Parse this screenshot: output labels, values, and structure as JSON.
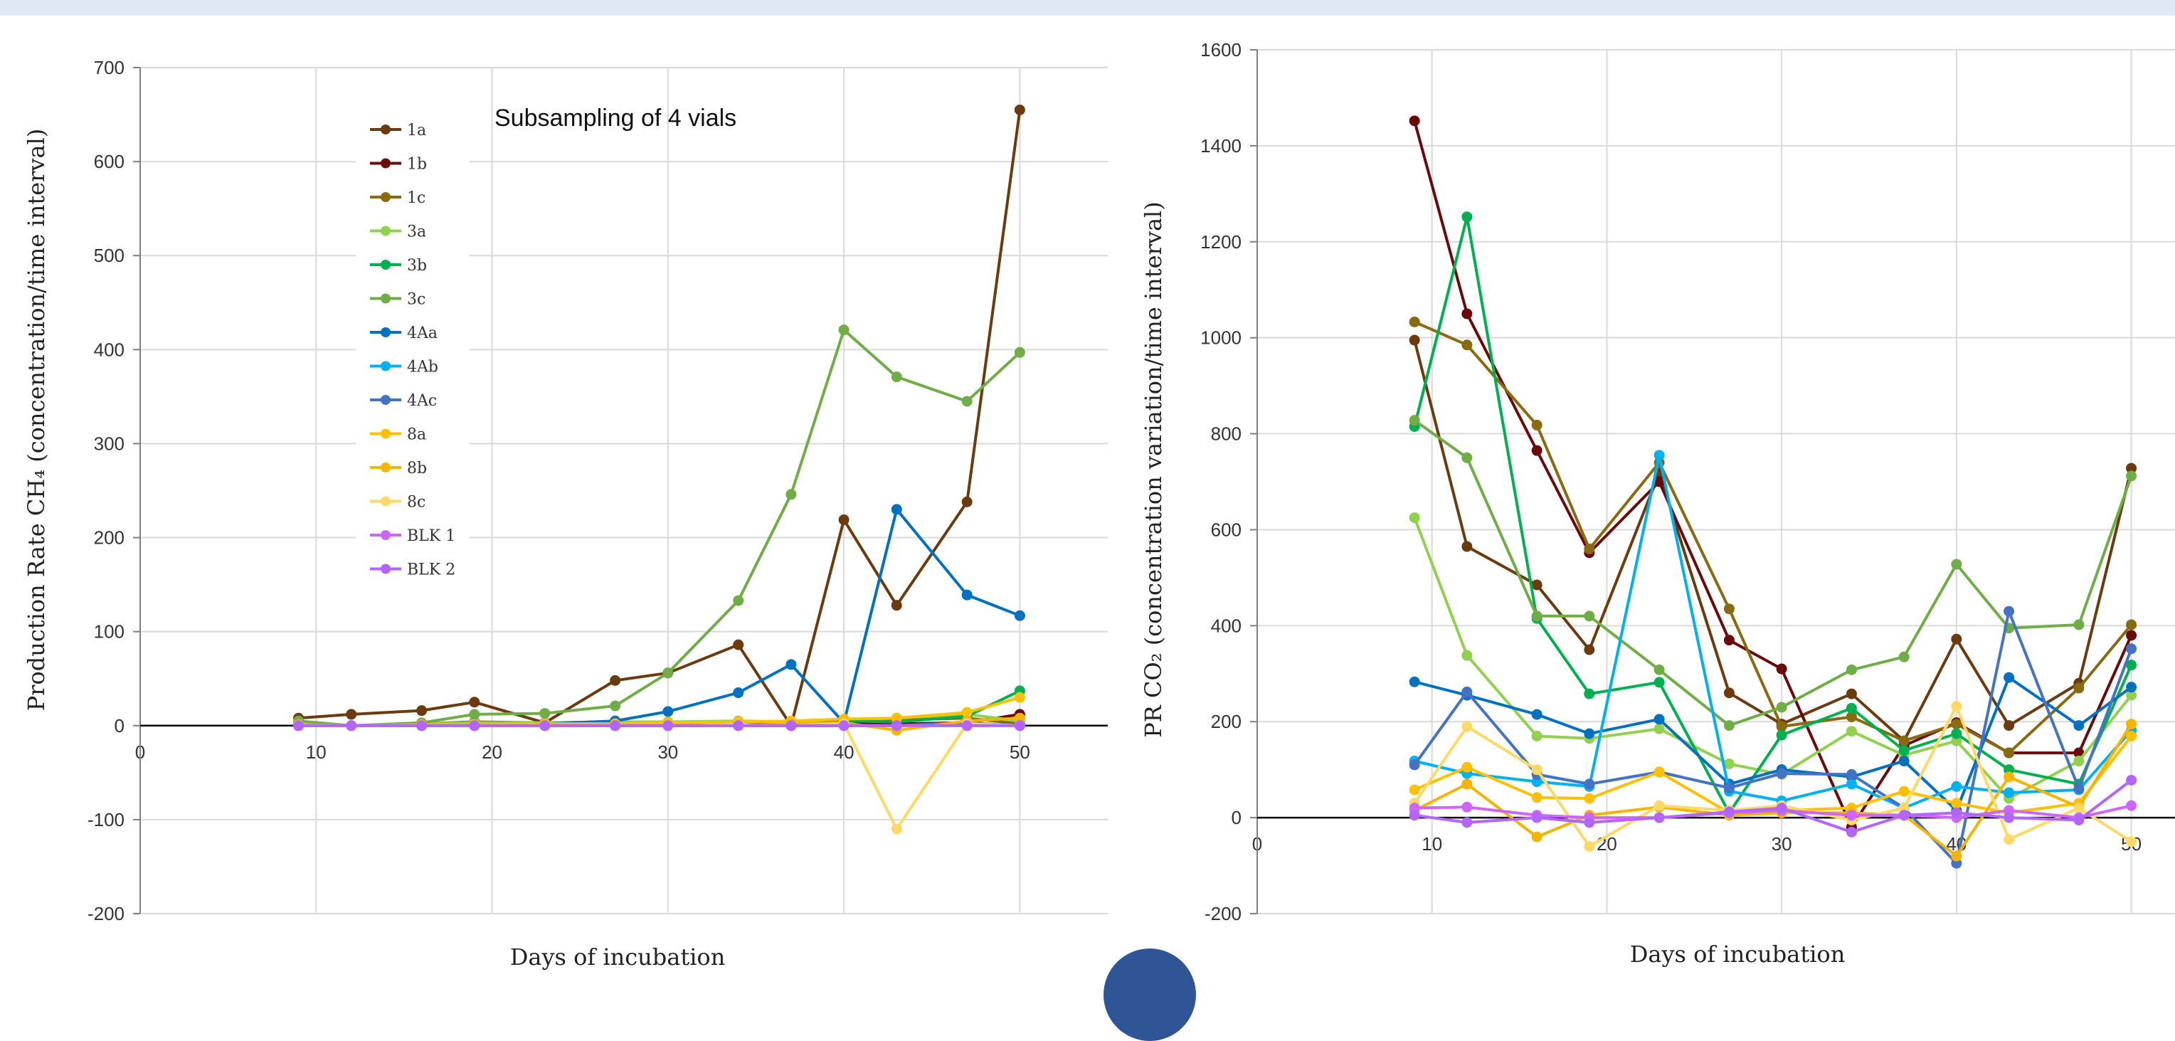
{
  "chart_data": [
    {
      "type": "line",
      "annotation": "Subsampling of 4 vials",
      "xlabel": "Days of incubation",
      "ylabel": "Production Rate CH₄ (concentration/time interval)",
      "xlim": [
        0,
        55
      ],
      "ylim": [
        -200,
        700
      ],
      "x_ticks": [
        0,
        10,
        20,
        30,
        40,
        50
      ],
      "y_ticks": [
        -200,
        -100,
        0,
        100,
        200,
        300,
        400,
        500,
        600,
        700
      ],
      "grid": true,
      "legend_position": "top-left",
      "x": [
        9,
        12,
        16,
        19,
        23,
        27,
        30,
        34,
        37,
        40,
        43,
        47,
        50
      ],
      "series": [
        {
          "name": "1a",
          "color": "#6b3a0f",
          "values": [
            8,
            12,
            16,
            25,
            3,
            48,
            56,
            86,
            0,
            219,
            128,
            238,
            655
          ]
        },
        {
          "name": "1b",
          "color": "#6b0a0a",
          "values": [
            2,
            0,
            0,
            0,
            0,
            0,
            0,
            0,
            0,
            3,
            2,
            3,
            12
          ]
        },
        {
          "name": "1c",
          "color": "#8a6a10",
          "values": [
            4,
            0,
            2,
            4,
            3,
            4,
            3,
            4,
            3,
            5,
            6,
            8,
            2
          ]
        },
        {
          "name": "3a",
          "color": "#92d050",
          "values": [
            3,
            0,
            2,
            3,
            3,
            4,
            4,
            5,
            4,
            6,
            8,
            12,
            5
          ]
        },
        {
          "name": "3b",
          "color": "#00b050",
          "values": [
            0,
            0,
            0,
            0,
            0,
            0,
            0,
            0,
            0,
            5,
            4,
            10,
            37
          ]
        },
        {
          "name": "3c",
          "color": "#70ad47",
          "values": [
            5,
            0,
            3,
            12,
            13,
            21,
            56,
            133,
            246,
            421,
            371,
            345,
            397
          ]
        },
        {
          "name": "4Aa",
          "color": "#0070c0",
          "values": [
            0,
            0,
            0,
            0,
            2,
            5,
            15,
            35,
            65,
            3,
            230,
            139,
            117
          ]
        },
        {
          "name": "4Ab",
          "color": "#00b0f0",
          "values": [
            0,
            0,
            0,
            0,
            0,
            0,
            0,
            0,
            0,
            0,
            0,
            3,
            0
          ]
        },
        {
          "name": "4Ac",
          "color": "#4472c4",
          "values": [
            0,
            0,
            0,
            0,
            0,
            0,
            0,
            0,
            0,
            0,
            0,
            2,
            0
          ]
        },
        {
          "name": "8a",
          "color": "#ffc000",
          "values": [
            1,
            0,
            1,
            1,
            2,
            2,
            3,
            4,
            5,
            7,
            8,
            14,
            30
          ]
        },
        {
          "name": "8b",
          "color": "#f4b400",
          "values": [
            0,
            0,
            0,
            0,
            0,
            0,
            0,
            0,
            2,
            3,
            -5,
            5,
            8
          ]
        },
        {
          "name": "8c",
          "color": "#ffd966",
          "values": [
            0,
            0,
            0,
            0,
            0,
            0,
            0,
            0,
            0,
            2,
            -110,
            2,
            0
          ]
        },
        {
          "name": "BLK 1",
          "color": "#cc66ff",
          "values": [
            0,
            0,
            0,
            0,
            0,
            0,
            0,
            0,
            0,
            0,
            0,
            0,
            0
          ]
        },
        {
          "name": "BLK 2",
          "color": "#b266ff",
          "values": [
            0,
            0,
            0,
            0,
            0,
            0,
            0,
            0,
            0,
            0,
            0,
            0,
            0
          ]
        }
      ]
    },
    {
      "type": "line",
      "xlabel": "Days of incubation",
      "ylabel": "PR CO₂ (concentration variation/time interval)",
      "xlim": [
        0,
        52.5
      ],
      "ylim": [
        -200,
        1600
      ],
      "x_ticks": [
        0,
        10,
        20,
        30,
        40,
        50
      ],
      "y_ticks": [
        -200,
        0,
        200,
        400,
        600,
        800,
        1000,
        1200,
        1400,
        1600
      ],
      "grid": true,
      "x": [
        9,
        12,
        16,
        19,
        23,
        27,
        30,
        34,
        37,
        40,
        43,
        47,
        50
      ],
      "series": [
        {
          "name": "1a",
          "color": "#6b3a0f",
          "values": [
            995,
            565,
            485,
            350,
            718,
            260,
            195,
            258,
            160,
            372,
            192,
            280,
            728
          ]
        },
        {
          "name": "1b",
          "color": "#6b0a0a",
          "values": [
            1452,
            1050,
            765,
            552,
            700,
            370,
            310,
            -20,
            150,
            198,
            135,
            135,
            380
          ]
        },
        {
          "name": "1c",
          "color": "#8a6a10",
          "values": [
            1033,
            985,
            818,
            560,
            740,
            435,
            190,
            210,
            160,
            195,
            135,
            270,
            402
          ]
        },
        {
          "name": "3a",
          "color": "#92d050",
          "values": [
            625,
            338,
            170,
            165,
            185,
            112,
            90,
            180,
            130,
            160,
            40,
            118,
            255
          ]
        },
        {
          "name": "3b",
          "color": "#00b050",
          "values": [
            815,
            1252,
            415,
            258,
            282,
            10,
            172,
            228,
            140,
            175,
            100,
            70,
            318
          ]
        },
        {
          "name": "3c",
          "color": "#70ad47",
          "values": [
            828,
            750,
            420,
            420,
            308,
            192,
            230,
            308,
            335,
            528,
            395,
            402,
            712
          ]
        },
        {
          "name": "4Aa",
          "color": "#0070c0",
          "values": [
            283,
            255,
            215,
            175,
            205,
            70,
            100,
            85,
            118,
            15,
            292,
            192,
            272
          ]
        },
        {
          "name": "4Ab",
          "color": "#00b0f0",
          "values": [
            118,
            92,
            75,
            65,
            755,
            55,
            35,
            70,
            20,
            65,
            52,
            58,
            182
          ]
        },
        {
          "name": "4Ac",
          "color": "#4472c4",
          "values": [
            110,
            262,
            90,
            70,
            95,
            62,
            92,
            90,
            20,
            -95,
            430,
            60,
            352
          ]
        },
        {
          "name": "8a",
          "color": "#ffc000",
          "values": [
            58,
            105,
            42,
            40,
            95,
            10,
            15,
            20,
            55,
            30,
            10,
            30,
            170
          ]
        },
        {
          "name": "8b",
          "color": "#f4b400",
          "values": [
            15,
            70,
            -40,
            5,
            22,
            5,
            10,
            10,
            5,
            -80,
            85,
            22,
            195
          ]
        },
        {
          "name": "8c",
          "color": "#ffd966",
          "values": [
            30,
            190,
            100,
            -60,
            25,
            15,
            25,
            -5,
            20,
            232,
            -45,
            20,
            -50
          ]
        },
        {
          "name": "BLK 1",
          "color": "#cc66ff",
          "values": [
            20,
            22,
            5,
            0,
            0,
            10,
            15,
            5,
            5,
            0,
            15,
            0,
            25
          ]
        },
        {
          "name": "BLK 2",
          "color": "#b266ff",
          "values": [
            5,
            -10,
            0,
            -10,
            0,
            12,
            20,
            -30,
            5,
            10,
            0,
            -5,
            78
          ]
        }
      ]
    }
  ]
}
